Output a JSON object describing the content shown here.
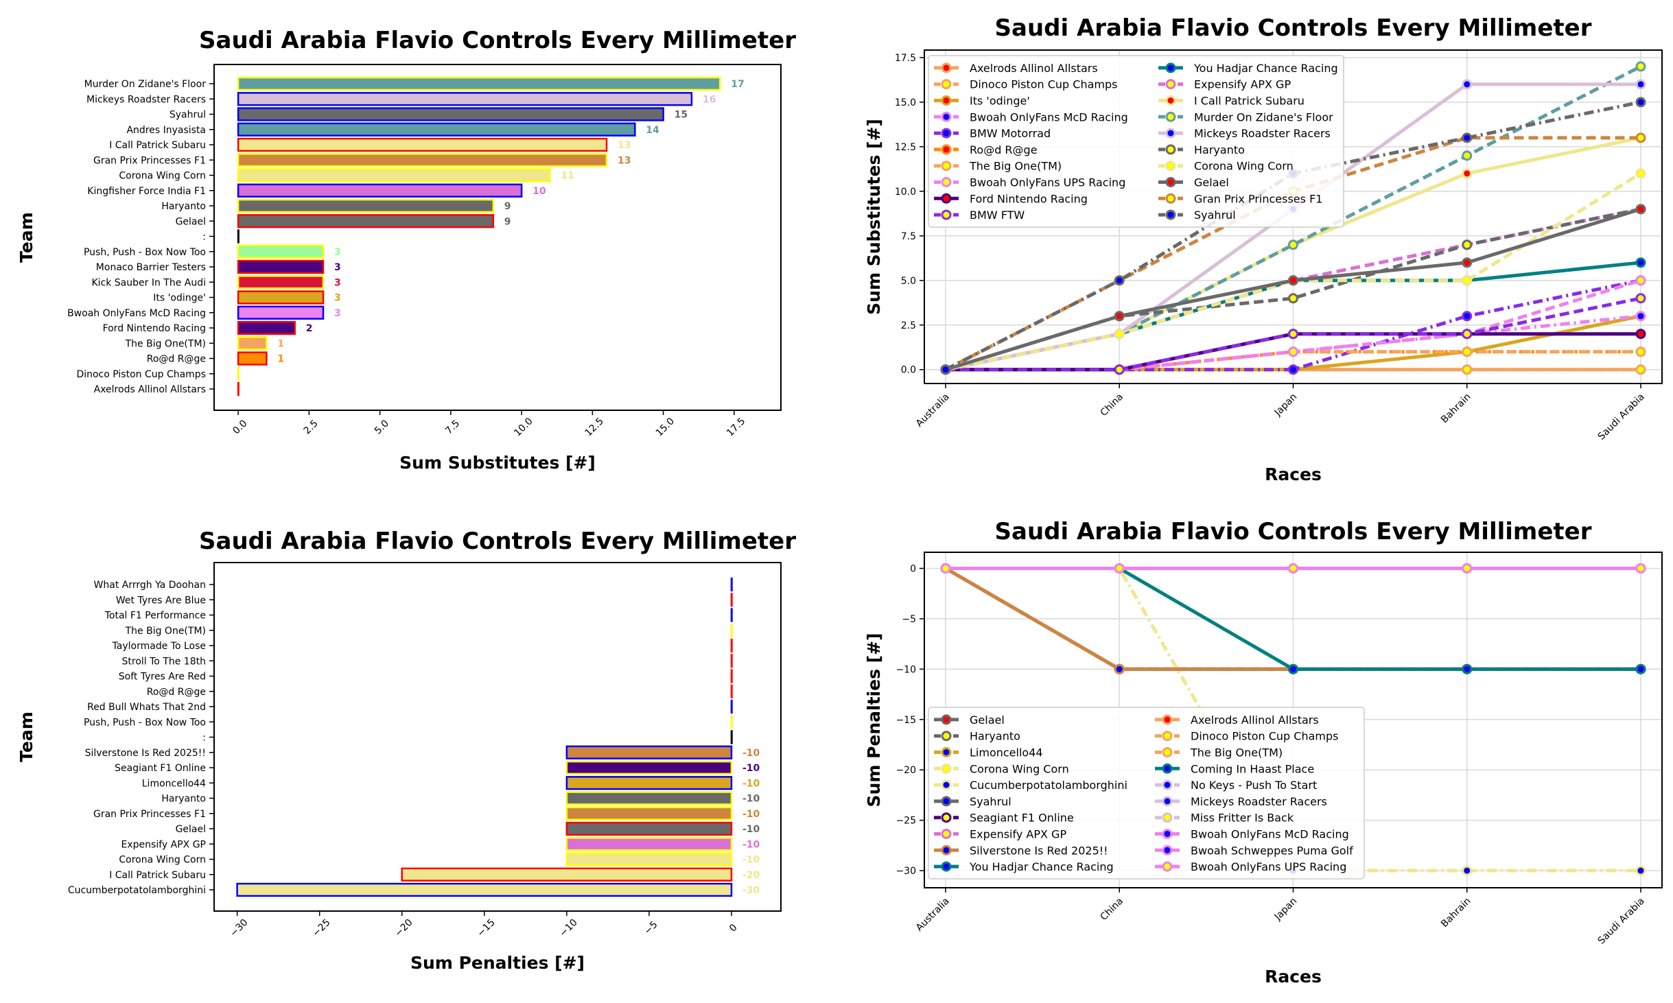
{
  "colors": {
    "yellow_edge": "#ffff00",
    "blue_edge": "#0000ff",
    "red_edge": "#ff0000",
    "grid": "#d9d9d9"
  },
  "chart_data": [
    {
      "type": "bar",
      "orientation": "horizontal",
      "title": "Saudi Arabia Flavio Controls Every Millimeter",
      "xlabel": "Sum Substitutes [#]",
      "ylabel": "Team",
      "xlim": [
        -0.85,
        19.15
      ],
      "xticks": [
        "0.0",
        "2.5",
        "5.0",
        "7.5",
        "10.0",
        "12.5",
        "15.0",
        "17.5"
      ],
      "xtick_values": [
        0,
        2.5,
        5,
        7.5,
        10,
        12.5,
        15,
        17.5
      ],
      "bars": [
        {
          "team": "Murder On Zidane's Floor",
          "value": 17,
          "label": "17",
          "fill": "#5f9ea0",
          "edge": "#ffff00"
        },
        {
          "team": "Mickeys Roadster Racers",
          "value": 16,
          "label": "16",
          "fill": "#d8bfd8",
          "edge": "#0000ff"
        },
        {
          "team": "Syahrul",
          "value": 15,
          "label": "15",
          "fill": "#696969",
          "edge": "#0000ff"
        },
        {
          "team": "Andres Inyasista",
          "value": 14,
          "label": "14",
          "fill": "#5f9ea0",
          "edge": "#0000ff"
        },
        {
          "team": "I Call Patrick Subaru",
          "value": 13,
          "label": "13",
          "fill": "#f0e68c",
          "edge": "#ff0000"
        },
        {
          "team": "Gran Prix Princesses F1",
          "value": 13,
          "label": "13",
          "fill": "#cd853f",
          "edge": "#ffff00"
        },
        {
          "team": "Corona Wing Corn",
          "value": 11,
          "label": "11",
          "fill": "#f0e68c",
          "edge": "#ffff00"
        },
        {
          "team": "Kingfisher Force India F1",
          "value": 10,
          "label": "10",
          "fill": "#da70d6",
          "edge": "#0000ff"
        },
        {
          "team": "Haryanto",
          "value": 9,
          "label": "9",
          "fill": "#696969",
          "edge": "#ffff00"
        },
        {
          "team": "Gelael",
          "value": 9,
          "label": "9",
          "fill": "#696969",
          "edge": "#ff0000"
        },
        {
          "team": ":",
          "value": 0,
          "label": "",
          "fill": "#000000",
          "edge": "#000000"
        },
        {
          "team": "Push, Push - Box Now Too",
          "value": 3,
          "label": "3",
          "fill": "#98fb98",
          "edge": "#ffff00"
        },
        {
          "team": "Monaco Barrier Testers",
          "value": 3,
          "label": "3",
          "fill": "#4b0082",
          "edge": "#ff0000"
        },
        {
          "team": "Kick Sauber In The Audi",
          "value": 3,
          "label": "3",
          "fill": "#dc143c",
          "edge": "#ffff00"
        },
        {
          "team": "Its 'odinge'",
          "value": 3,
          "label": "3",
          "fill": "#daa520",
          "edge": "#ff0000"
        },
        {
          "team": "Bwoah OnlyFans McD Racing",
          "value": 3,
          "label": "3",
          "fill": "#ee82ee",
          "edge": "#0000ff"
        },
        {
          "team": "Ford Nintendo Racing",
          "value": 2,
          "label": "2",
          "fill": "#4b0082",
          "edge": "#ff0000"
        },
        {
          "team": "The Big One(TM)",
          "value": 1,
          "label": "1",
          "fill": "#f4a460",
          "edge": "#ffff00"
        },
        {
          "team": "Ro@d R@ge",
          "value": 1,
          "label": "1",
          "fill": "#ff8c00",
          "edge": "#ff0000"
        },
        {
          "team": "Dinoco Piston Cup Champs",
          "value": 0,
          "label": "",
          "fill": "#f4a460",
          "edge": "#ffff00"
        },
        {
          "team": "Axelrods Allinol Allstars",
          "value": 0,
          "label": "",
          "fill": "#f4a460",
          "edge": "#ff0000"
        }
      ]
    },
    {
      "type": "line",
      "title": "Saudi Arabia Flavio Controls Every Millimeter",
      "xlabel": "Races",
      "ylabel": "Sum Substitutes [#]",
      "ylim": [
        -0.78,
        17.92
      ],
      "grid": true,
      "legend": "upper-left",
      "categories": [
        "Australia",
        "China",
        "Japan",
        "Bahrain",
        "Saudi Arabia"
      ],
      "yticks": [
        "0.0",
        "2.5",
        "5.0",
        "7.5",
        "10.0",
        "12.5",
        "15.0",
        "17.5"
      ],
      "ytick_values": [
        0,
        2.5,
        5,
        7.5,
        10,
        12.5,
        15,
        17.5
      ],
      "series": [
        {
          "name": "Axelrods Allinol Allstars",
          "values": [
            0,
            0,
            0,
            0,
            0
          ],
          "color": "#f4a460",
          "marker": "#ff0000",
          "style": "solid"
        },
        {
          "name": "Dinoco Piston Cup Champs",
          "values": [
            0,
            0,
            0,
            0,
            0
          ],
          "color": "#f4a460",
          "marker": "#ffff00",
          "style": "dashed"
        },
        {
          "name": "Its 'odinge'",
          "values": [
            0,
            0,
            0,
            1,
            3
          ],
          "color": "#daa520",
          "marker": "#ff0000",
          "style": "solid"
        },
        {
          "name": "Bwoah OnlyFans McD Racing",
          "values": [
            0,
            0,
            1,
            2,
            3
          ],
          "color": "#ee82ee",
          "marker": "#0000ff",
          "style": "dashdot"
        },
        {
          "name": "BMW Motorrad",
          "values": [
            0,
            0,
            0,
            3,
            5
          ],
          "color": "#8a2be2",
          "marker": "#0000ff",
          "style": "dashdot"
        },
        {
          "name": "Ro@d R@ge",
          "values": [
            0,
            0,
            1,
            1,
            1
          ],
          "color": "#ff8c00",
          "marker": "#ff0000",
          "style": "dotted"
        },
        {
          "name": "The Big One(TM)",
          "values": [
            0,
            0,
            1,
            1,
            1
          ],
          "color": "#f4a460",
          "marker": "#ffff00",
          "style": "dashed"
        },
        {
          "name": "Bwoah OnlyFans UPS Racing",
          "values": [
            0,
            0,
            1,
            2,
            5
          ],
          "color": "#ee82ee",
          "marker": "#ffff00",
          "style": "dashed"
        },
        {
          "name": "Ford Nintendo Racing",
          "values": [
            0,
            0,
            2,
            2,
            2
          ],
          "color": "#4b0082",
          "marker": "#ff0000",
          "style": "solid"
        },
        {
          "name": "BMW FTW",
          "values": [
            0,
            0,
            2,
            2,
            4
          ],
          "color": "#8a2be2",
          "marker": "#ffff00",
          "style": "dashed"
        },
        {
          "name": "You Hadjar Chance Racing",
          "values": [
            0,
            2,
            5,
            5,
            6
          ],
          "color": "#008080",
          "marker": "#0000ff",
          "style": "solid"
        },
        {
          "name": "Expensify APX GP",
          "values": [
            0,
            2,
            5,
            7,
            9
          ],
          "color": "#da70d6",
          "marker": "#ffff00",
          "style": "dashed"
        },
        {
          "name": "I Call Patrick Subaru",
          "values": [
            0,
            2,
            7,
            11,
            13
          ],
          "color": "#f0e68c",
          "marker": "#ff0000",
          "style": "solid"
        },
        {
          "name": "Murder On Zidane's Floor",
          "values": [
            0,
            2,
            7,
            12,
            17
          ],
          "color": "#5f9ea0",
          "marker": "#ffff00",
          "style": "dashed"
        },
        {
          "name": "Mickeys Roadster Racers",
          "values": [
            0,
            2,
            9,
            16,
            16
          ],
          "color": "#d8bfd8",
          "marker": "#0000ff",
          "style": "solid"
        },
        {
          "name": "Haryanto",
          "values": [
            0,
            3,
            4,
            7,
            9
          ],
          "color": "#696969",
          "marker": "#ffff00",
          "style": "dashed"
        },
        {
          "name": "Corona Wing Corn",
          "values": [
            0,
            2,
            5,
            5,
            11
          ],
          "color": "#f0e68c",
          "marker": "#ffff00",
          "style": "dashed"
        },
        {
          "name": "Gelael",
          "values": [
            0,
            3,
            5,
            6,
            9
          ],
          "color": "#696969",
          "marker": "#ff0000",
          "style": "solid"
        },
        {
          "name": "Gran Prix Princesses F1",
          "values": [
            0,
            5,
            10,
            13,
            13
          ],
          "color": "#cd853f",
          "marker": "#ffff00",
          "style": "dashed"
        },
        {
          "name": "Syahrul",
          "values": [
            0,
            5,
            11,
            13,
            15
          ],
          "color": "#696969",
          "marker": "#0000ff",
          "style": "dashdot"
        }
      ]
    },
    {
      "type": "bar",
      "orientation": "horizontal",
      "title": "Saudi Arabia Flavio Controls Every Millimeter",
      "xlabel": "Sum Penalties [#]",
      "ylabel": "Team",
      "xlim": [
        -31.4,
        3.0
      ],
      "xticks": [
        "−30",
        "−25",
        "−20",
        "−15",
        "−10",
        "−5",
        "0"
      ],
      "xtick_values": [
        -30,
        -25,
        -20,
        -15,
        -10,
        -5,
        0
      ],
      "bars": [
        {
          "team": "What Arrrgh Ya Doohan",
          "value": 0,
          "label": "",
          "fill": "#0000ff",
          "edge": "#0000ff"
        },
        {
          "team": "Wet Tyres Are Blue",
          "value": 0,
          "label": "",
          "fill": "#ff0000",
          "edge": "#ff0000"
        },
        {
          "team": "Total F1 Performance",
          "value": 0,
          "label": "",
          "fill": "#0000ff",
          "edge": "#0000ff"
        },
        {
          "team": "The Big One(TM)",
          "value": 0,
          "label": "",
          "fill": "#ffff00",
          "edge": "#ffff00"
        },
        {
          "team": "Taylormade To Lose",
          "value": 0,
          "label": "",
          "fill": "#ff0000",
          "edge": "#ff0000"
        },
        {
          "team": "Stroll To The 18th",
          "value": 0,
          "label": "",
          "fill": "#ff0000",
          "edge": "#ff0000"
        },
        {
          "team": "Soft Tyres Are Red",
          "value": 0,
          "label": "",
          "fill": "#ff0000",
          "edge": "#ff0000"
        },
        {
          "team": "Ro@d R@ge",
          "value": 0,
          "label": "",
          "fill": "#ff0000",
          "edge": "#ff0000"
        },
        {
          "team": "Red Bull Whats That 2nd",
          "value": 0,
          "label": "",
          "fill": "#0000ff",
          "edge": "#0000ff"
        },
        {
          "team": "Push, Push - Box Now Too",
          "value": 0,
          "label": "",
          "fill": "#ffff00",
          "edge": "#ffff00"
        },
        {
          "team": ":",
          "value": 0,
          "label": "",
          "fill": "#000000",
          "edge": "#000000"
        },
        {
          "team": "Silverstone Is Red 2025!!",
          "value": -10,
          "label": "-10",
          "fill": "#cd853f",
          "edge": "#0000ff"
        },
        {
          "team": "Seagiant F1 Online",
          "value": -10,
          "label": "-10",
          "fill": "#4b0082",
          "edge": "#ffff00"
        },
        {
          "team": "Limoncello44",
          "value": -10,
          "label": "-10",
          "fill": "#daa520",
          "edge": "#0000ff"
        },
        {
          "team": "Haryanto",
          "value": -10,
          "label": "-10",
          "fill": "#696969",
          "edge": "#ffff00"
        },
        {
          "team": "Gran Prix Princesses F1",
          "value": -10,
          "label": "-10",
          "fill": "#cd853f",
          "edge": "#ffff00"
        },
        {
          "team": "Gelael",
          "value": -10,
          "label": "-10",
          "fill": "#696969",
          "edge": "#ff0000"
        },
        {
          "team": "Expensify APX GP",
          "value": -10,
          "label": "-10",
          "fill": "#da70d6",
          "edge": "#ffff00"
        },
        {
          "team": "Corona Wing Corn",
          "value": -10,
          "label": "-10",
          "fill": "#f0e68c",
          "edge": "#ffff00"
        },
        {
          "team": "I Call Patrick Subaru",
          "value": -20,
          "label": "-20",
          "fill": "#f0e68c",
          "edge": "#ff0000"
        },
        {
          "team": "Cucumberpotatolamborghini",
          "value": -30,
          "label": "-30",
          "fill": "#f0e68c",
          "edge": "#0000ff"
        }
      ]
    },
    {
      "type": "line",
      "title": "Saudi Arabia Flavio Controls Every Millimeter",
      "xlabel": "Races",
      "ylabel": "Sum Penalties [#]",
      "ylim": [
        -31.7,
        1.6
      ],
      "grid": true,
      "legend": "lower-left",
      "categories": [
        "Australia",
        "China",
        "Japan",
        "Bahrain",
        "Saudi Arabia"
      ],
      "yticks": [
        "0",
        "−5",
        "−10",
        "−15",
        "−20",
        "−25",
        "−30"
      ],
      "ytick_values": [
        0,
        -5,
        -10,
        -15,
        -20,
        -25,
        -30
      ],
      "series": [
        {
          "name": "Gelael",
          "values": [
            0,
            -10,
            -10,
            -10,
            -10
          ],
          "color": "#696969",
          "marker": "#ff0000",
          "style": "solid"
        },
        {
          "name": "Haryanto",
          "values": [
            0,
            -10,
            -10,
            -10,
            -10
          ],
          "color": "#696969",
          "marker": "#ffff00",
          "style": "dashed"
        },
        {
          "name": "Limoncello44",
          "values": [
            0,
            -10,
            -10,
            -10,
            -10
          ],
          "color": "#daa520",
          "marker": "#0000ff",
          "style": "dashed"
        },
        {
          "name": "Corona Wing Corn",
          "values": [
            0,
            -10,
            -10,
            -10,
            -10
          ],
          "color": "#f0e68c",
          "marker": "#ffff00",
          "style": "dashed"
        },
        {
          "name": "Cucumberpotatolamborghini",
          "values": [
            0,
            0,
            -30,
            -30,
            -30
          ],
          "color": "#f0e68c",
          "marker": "#0000ff",
          "style": "dashdot"
        },
        {
          "name": "Syahrul",
          "values": [
            0,
            0,
            0,
            0,
            0
          ],
          "color": "#696969",
          "marker": "#0000ff",
          "style": "solid"
        },
        {
          "name": "Seagiant F1 Online",
          "values": [
            0,
            -10,
            -10,
            -10,
            -10
          ],
          "color": "#4b0082",
          "marker": "#ffff00",
          "style": "dashed"
        },
        {
          "name": "Expensify APX GP",
          "values": [
            0,
            -10,
            -10,
            -10,
            -10
          ],
          "color": "#da70d6",
          "marker": "#ffff00",
          "style": "dashed"
        },
        {
          "name": "Silverstone Is Red 2025!!",
          "values": [
            0,
            -10,
            -10,
            -10,
            -10
          ],
          "color": "#cd853f",
          "marker": "#0000ff",
          "style": "solid"
        },
        {
          "name": "You Hadjar Chance Racing",
          "values": [
            0,
            0,
            0,
            0,
            0
          ],
          "color": "#008080",
          "marker": "#0000ff",
          "style": "solid"
        },
        {
          "name": "Axelrods Allinol Allstars",
          "values": [
            0,
            0,
            0,
            0,
            0
          ],
          "color": "#f4a460",
          "marker": "#ff0000",
          "style": "solid"
        },
        {
          "name": "Dinoco Piston Cup Champs",
          "values": [
            0,
            0,
            0,
            0,
            0
          ],
          "color": "#f4a460",
          "marker": "#ffff00",
          "style": "dashed"
        },
        {
          "name": "The Big One(TM)",
          "values": [
            0,
            0,
            0,
            0,
            0
          ],
          "color": "#f4a460",
          "marker": "#ffff00",
          "style": "dashed"
        },
        {
          "name": "Coming In Haast Place",
          "values": [
            0,
            0,
            -10,
            -10,
            -10
          ],
          "color": "#008080",
          "marker": "#0000ff",
          "style": "solid"
        },
        {
          "name": "No Keys - Push To Start",
          "values": [
            0,
            0,
            0,
            0,
            0
          ],
          "color": "#d8bfd8",
          "marker": "#0000ff",
          "style": "dashdot"
        },
        {
          "name": "Mickeys Roadster Racers",
          "values": [
            0,
            0,
            0,
            0,
            0
          ],
          "color": "#d8bfd8",
          "marker": "#0000ff",
          "style": "solid"
        },
        {
          "name": "Miss Fritter Is Back",
          "values": [
            0,
            0,
            0,
            0,
            0
          ],
          "color": "#d8bfd8",
          "marker": "#ffff00",
          "style": "dashed"
        },
        {
          "name": "Bwoah OnlyFans McD Racing",
          "values": [
            0,
            0,
            0,
            0,
            0
          ],
          "color": "#ee82ee",
          "marker": "#0000ff",
          "style": "solid"
        },
        {
          "name": "Bwoah Schweppes Puma Golf",
          "values": [
            0,
            0,
            0,
            0,
            0
          ],
          "color": "#ee82ee",
          "marker": "#0000ff",
          "style": "solid"
        },
        {
          "name": "Bwoah OnlyFans UPS Racing",
          "values": [
            0,
            0,
            0,
            0,
            0
          ],
          "color": "#ee82ee",
          "marker": "#ffff00",
          "style": "solid"
        }
      ]
    }
  ]
}
